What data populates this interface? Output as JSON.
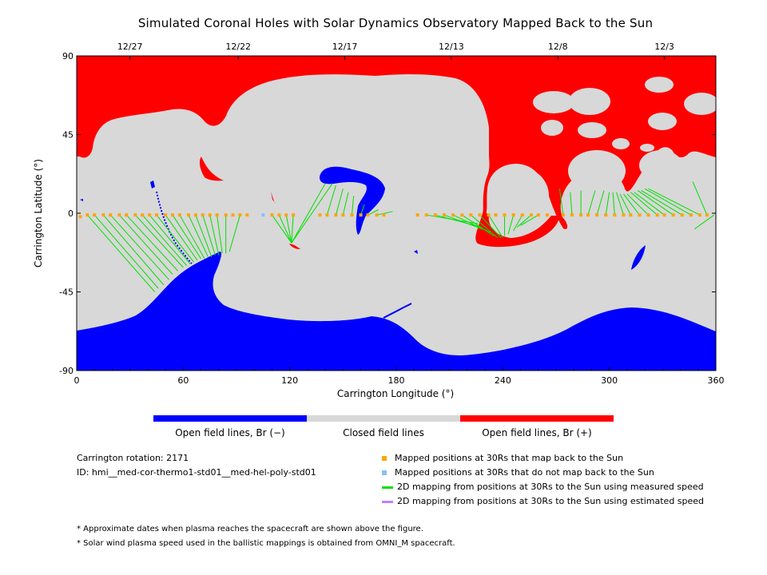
{
  "chart_data": {
    "type": "heatmap",
    "title": "Simulated Coronal Holes with Solar Dynamics Observatory Mapped Back to the Sun",
    "xlabel": "Carrington Longitude (°)",
    "ylabel": "Carrington Latitude (°)",
    "xlim": [
      0,
      360
    ],
    "ylim": [
      -90,
      90
    ],
    "x_ticks": [
      0,
      60,
      120,
      180,
      240,
      300,
      360
    ],
    "y_ticks": [
      90,
      45,
      0,
      -45,
      -90
    ],
    "y_tick_labels": [
      "90",
      "45",
      "0",
      "-45",
      "-90"
    ],
    "top_date_labels": [
      {
        "label": "12/27",
        "lon": 30
      },
      {
        "label": "12/22",
        "lon": 91
      },
      {
        "label": "12/17",
        "lon": 151
      },
      {
        "label": "12/13",
        "lon": 211
      },
      {
        "label": "12/8",
        "lon": 271
      },
      {
        "label": "12/3",
        "lon": 331
      }
    ],
    "colorbar": [
      {
        "label": "Open field lines, Br (−)",
        "color": "#0000ff"
      },
      {
        "label": "Closed field lines",
        "color": "#d8d8d8"
      },
      {
        "label": "Open field lines, Br (+)",
        "color": "#ff0000"
      }
    ],
    "mapped_positions": [
      {
        "lon": 2,
        "lat": -2,
        "maps_back": true
      },
      {
        "lon": 6,
        "lat": -1,
        "maps_back": true
      },
      {
        "lon": 10,
        "lat": -1,
        "maps_back": true
      },
      {
        "lon": 15,
        "lat": -1,
        "maps_back": true
      },
      {
        "lon": 19,
        "lat": -1,
        "maps_back": true
      },
      {
        "lon": 24,
        "lat": -1,
        "maps_back": true
      },
      {
        "lon": 28,
        "lat": -1,
        "maps_back": true
      },
      {
        "lon": 33,
        "lat": -1,
        "maps_back": true
      },
      {
        "lon": 37,
        "lat": -1,
        "maps_back": true
      },
      {
        "lon": 41,
        "lat": -1,
        "maps_back": true
      },
      {
        "lon": 45,
        "lat": -1,
        "maps_back": true
      },
      {
        "lon": 50,
        "lat": -1,
        "maps_back": true
      },
      {
        "lon": 54,
        "lat": -1,
        "maps_back": true
      },
      {
        "lon": 58,
        "lat": -1,
        "maps_back": true
      },
      {
        "lon": 63,
        "lat": -1,
        "maps_back": true
      },
      {
        "lon": 67,
        "lat": -1,
        "maps_back": true
      },
      {
        "lon": 71,
        "lat": -1,
        "maps_back": true
      },
      {
        "lon": 75,
        "lat": -1,
        "maps_back": true
      },
      {
        "lon": 79,
        "lat": -1,
        "maps_back": true
      },
      {
        "lon": 84,
        "lat": -1,
        "maps_back": true
      },
      {
        "lon": 88,
        "lat": -1,
        "maps_back": true
      },
      {
        "lon": 92,
        "lat": -1,
        "maps_back": true
      },
      {
        "lon": 96,
        "lat": -1,
        "maps_back": true
      },
      {
        "lon": 105,
        "lat": -1,
        "maps_back": false
      },
      {
        "lon": 110,
        "lat": -1,
        "maps_back": true
      },
      {
        "lon": 114,
        "lat": -1,
        "maps_back": true
      },
      {
        "lon": 118,
        "lat": -1,
        "maps_back": true
      },
      {
        "lon": 122,
        "lat": -1,
        "maps_back": true
      },
      {
        "lon": 137,
        "lat": -1,
        "maps_back": true
      },
      {
        "lon": 141,
        "lat": -1,
        "maps_back": true
      },
      {
        "lon": 146,
        "lat": -1,
        "maps_back": true
      },
      {
        "lon": 150,
        "lat": -1,
        "maps_back": true
      },
      {
        "lon": 155,
        "lat": -1,
        "maps_back": true
      },
      {
        "lon": 160,
        "lat": -1,
        "maps_back": true
      },
      {
        "lon": 164,
        "lat": -1,
        "maps_back": true
      },
      {
        "lon": 169,
        "lat": -1,
        "maps_back": true
      },
      {
        "lon": 173,
        "lat": -1,
        "maps_back": true
      },
      {
        "lon": 192,
        "lat": -1,
        "maps_back": true
      },
      {
        "lon": 197,
        "lat": -1,
        "maps_back": true
      },
      {
        "lon": 202,
        "lat": -1,
        "maps_back": true
      },
      {
        "lon": 207,
        "lat": -1,
        "maps_back": true
      },
      {
        "lon": 212,
        "lat": -1,
        "maps_back": true
      },
      {
        "lon": 217,
        "lat": -1,
        "maps_back": true
      },
      {
        "lon": 222,
        "lat": -1,
        "maps_back": true
      },
      {
        "lon": 227,
        "lat": -1,
        "maps_back": true
      },
      {
        "lon": 232,
        "lat": -1,
        "maps_back": true
      },
      {
        "lon": 236,
        "lat": -1,
        "maps_back": true
      },
      {
        "lon": 241,
        "lat": -1,
        "maps_back": true
      },
      {
        "lon": 246,
        "lat": -1,
        "maps_back": true
      },
      {
        "lon": 251,
        "lat": -1,
        "maps_back": true
      },
      {
        "lon": 256,
        "lat": -1,
        "maps_back": true
      },
      {
        "lon": 260,
        "lat": -1,
        "maps_back": true
      },
      {
        "lon": 265,
        "lat": -1,
        "maps_back": true
      },
      {
        "lon": 274,
        "lat": -1,
        "maps_back": true
      },
      {
        "lon": 279,
        "lat": -1,
        "maps_back": true
      },
      {
        "lon": 284,
        "lat": -1,
        "maps_back": true
      },
      {
        "lon": 288,
        "lat": -1,
        "maps_back": true
      },
      {
        "lon": 293,
        "lat": -1,
        "maps_back": true
      },
      {
        "lon": 298,
        "lat": -1,
        "maps_back": true
      },
      {
        "lon": 303,
        "lat": -1,
        "maps_back": true
      },
      {
        "lon": 308,
        "lat": -1,
        "maps_back": true
      },
      {
        "lon": 312,
        "lat": -1,
        "maps_back": true
      },
      {
        "lon": 317,
        "lat": -1,
        "maps_back": true
      },
      {
        "lon": 322,
        "lat": -1,
        "maps_back": true
      },
      {
        "lon": 327,
        "lat": -1,
        "maps_back": true
      },
      {
        "lon": 331,
        "lat": -1,
        "maps_back": true
      },
      {
        "lon": 336,
        "lat": -1,
        "maps_back": true
      },
      {
        "lon": 341,
        "lat": -1,
        "maps_back": true
      },
      {
        "lon": 346,
        "lat": -1,
        "maps_back": true
      },
      {
        "lon": 351,
        "lat": -1,
        "maps_back": true
      },
      {
        "lon": 355,
        "lat": -1,
        "maps_back": true
      }
    ],
    "mapping_lines_measured_speed": [
      {
        "from": [
          6,
          -1
        ],
        "to": [
          44,
          -45
        ]
      },
      {
        "from": [
          10,
          -1
        ],
        "to": [
          46,
          -43
        ]
      },
      {
        "from": [
          15,
          -1
        ],
        "to": [
          49,
          -41
        ]
      },
      {
        "from": [
          19,
          -1
        ],
        "to": [
          52,
          -38
        ]
      },
      {
        "from": [
          24,
          -1
        ],
        "to": [
          54,
          -35
        ]
      },
      {
        "from": [
          28,
          -1
        ],
        "to": [
          57,
          -33
        ]
      },
      {
        "from": [
          33,
          -1
        ],
        "to": [
          60,
          -31
        ]
      },
      {
        "from": [
          37,
          -1
        ],
        "to": [
          62,
          -30
        ]
      },
      {
        "from": [
          41,
          -1
        ],
        "to": [
          64,
          -29
        ]
      },
      {
        "from": [
          45,
          -1
        ],
        "to": [
          66,
          -28
        ]
      },
      {
        "from": [
          50,
          -1
        ],
        "to": [
          68,
          -27
        ]
      },
      {
        "from": [
          54,
          -1
        ],
        "to": [
          70,
          -26
        ]
      },
      {
        "from": [
          58,
          -1
        ],
        "to": [
          72,
          -26
        ]
      },
      {
        "from": [
          63,
          -1
        ],
        "to": [
          74,
          -25
        ]
      },
      {
        "from": [
          67,
          -1
        ],
        "to": [
          76,
          -25
        ]
      },
      {
        "from": [
          71,
          -1
        ],
        "to": [
          78,
          -24
        ]
      },
      {
        "from": [
          75,
          -1
        ],
        "to": [
          80,
          -24
        ]
      },
      {
        "from": [
          79,
          -1
        ],
        "to": [
          82,
          -23
        ]
      },
      {
        "from": [
          84,
          -1
        ],
        "to": [
          84,
          -23
        ]
      },
      {
        "from": [
          92,
          -1
        ],
        "to": [
          86,
          -22
        ]
      },
      {
        "from": [
          110,
          -1
        ],
        "to": [
          121,
          -17
        ]
      },
      {
        "from": [
          114,
          -1
        ],
        "to": [
          121,
          -17
        ]
      },
      {
        "from": [
          118,
          -1
        ],
        "to": [
          121,
          -17
        ]
      },
      {
        "from": [
          122,
          -1
        ],
        "to": [
          121,
          -17
        ]
      },
      {
        "from": [
          121,
          -17
        ],
        "to": [
          140,
          17
        ]
      },
      {
        "from": [
          121,
          -17
        ],
        "to": [
          144,
          17
        ]
      },
      {
        "from": [
          141,
          -1
        ],
        "to": [
          146,
          16
        ]
      },
      {
        "from": [
          146,
          -1
        ],
        "to": [
          150,
          14
        ]
      },
      {
        "from": [
          150,
          -1
        ],
        "to": [
          153,
          12
        ]
      },
      {
        "from": [
          155,
          -1
        ],
        "to": [
          156,
          10
        ]
      },
      {
        "from": [
          160,
          -1
        ],
        "to": [
          162,
          5
        ]
      },
      {
        "from": [
          164,
          -1
        ],
        "to": [
          170,
          2
        ]
      },
      {
        "from": [
          169,
          -1
        ],
        "to": [
          178,
          1
        ]
      },
      {
        "from": [
          197,
          -1
        ],
        "to": [
          226,
          -6
        ]
      },
      {
        "from": [
          202,
          -1
        ],
        "to": [
          228,
          -8
        ]
      },
      {
        "from": [
          207,
          -1
        ],
        "to": [
          231,
          -10
        ]
      },
      {
        "from": [
          212,
          -1
        ],
        "to": [
          233,
          -11
        ]
      },
      {
        "from": [
          217,
          -1
        ],
        "to": [
          235,
          -13
        ]
      },
      {
        "from": [
          222,
          -1
        ],
        "to": [
          237,
          -14
        ]
      },
      {
        "from": [
          227,
          -1
        ],
        "to": [
          239,
          -14
        ]
      },
      {
        "from": [
          232,
          -1
        ],
        "to": [
          240,
          -14
        ]
      },
      {
        "from": [
          241,
          -1
        ],
        "to": [
          241,
          -13
        ]
      },
      {
        "from": [
          246,
          -1
        ],
        "to": [
          243,
          -12
        ]
      },
      {
        "from": [
          251,
          -1
        ],
        "to": [
          246,
          -10
        ]
      },
      {
        "from": [
          256,
          -1
        ],
        "to": [
          248,
          -8
        ]
      },
      {
        "from": [
          260,
          -1
        ],
        "to": [
          250,
          -7
        ]
      },
      {
        "from": [
          274,
          -1
        ],
        "to": [
          272,
          14
        ]
      },
      {
        "from": [
          279,
          -1
        ],
        "to": [
          278,
          12
        ]
      },
      {
        "from": [
          284,
          -1
        ],
        "to": [
          284,
          13
        ]
      },
      {
        "from": [
          288,
          -1
        ],
        "to": [
          292,
          13
        ]
      },
      {
        "from": [
          293,
          -1
        ],
        "to": [
          297,
          13
        ]
      },
      {
        "from": [
          298,
          -1
        ],
        "to": [
          300,
          12
        ]
      },
      {
        "from": [
          303,
          -1
        ],
        "to": [
          302,
          12
        ]
      },
      {
        "from": [
          308,
          -1
        ],
        "to": [
          304,
          12
        ]
      },
      {
        "from": [
          312,
          -1
        ],
        "to": [
          306,
          11
        ]
      },
      {
        "from": [
          317,
          -1
        ],
        "to": [
          308,
          11
        ]
      },
      {
        "from": [
          322,
          -1
        ],
        "to": [
          310,
          11
        ]
      },
      {
        "from": [
          327,
          -1
        ],
        "to": [
          312,
          12
        ]
      },
      {
        "from": [
          331,
          -1
        ],
        "to": [
          314,
          12
        ]
      },
      {
        "from": [
          336,
          -1
        ],
        "to": [
          316,
          13
        ]
      },
      {
        "from": [
          341,
          -1
        ],
        "to": [
          318,
          13
        ]
      },
      {
        "from": [
          346,
          -1
        ],
        "to": [
          320,
          14
        ]
      },
      {
        "from": [
          351,
          -1
        ],
        "to": [
          322,
          14
        ]
      },
      {
        "from": [
          355,
          -1
        ],
        "to": [
          347,
          18
        ]
      },
      {
        "from": [
          359,
          -1
        ],
        "to": [
          348,
          -9
        ]
      }
    ]
  },
  "info": {
    "rotation": "Carrington rotation: 2171",
    "model_id": "ID: hmi__med-cor-thermo1-std01__med-hel-poly-std01"
  },
  "legend": {
    "mapped_back": {
      "label": "Mapped positions at 30Rs that map back to the Sun",
      "color": "#ffa500"
    },
    "not_mapped_back": {
      "label": "Mapped positions at 30Rs that do not map back to the Sun",
      "color": "#87bfff"
    },
    "measured_speed": {
      "label": "2D mapping from positions at 30Rs to the Sun using measured speed",
      "color": "#00e000"
    },
    "estimated_speed": {
      "label": "2D mapping from positions at 30Rs to the Sun using estimated speed",
      "color": "#c080ff"
    }
  },
  "notes": [
    "* Approximate dates when plasma reaches the spacecraft are shown above the figure.",
    "* Solar wind plasma speed used in the ballistic mappings is obtained from OMNI_M spacecraft."
  ],
  "colors": {
    "open_negative": "#0000ff",
    "closed": "#d8d8d8",
    "open_positive": "#ff0000"
  }
}
